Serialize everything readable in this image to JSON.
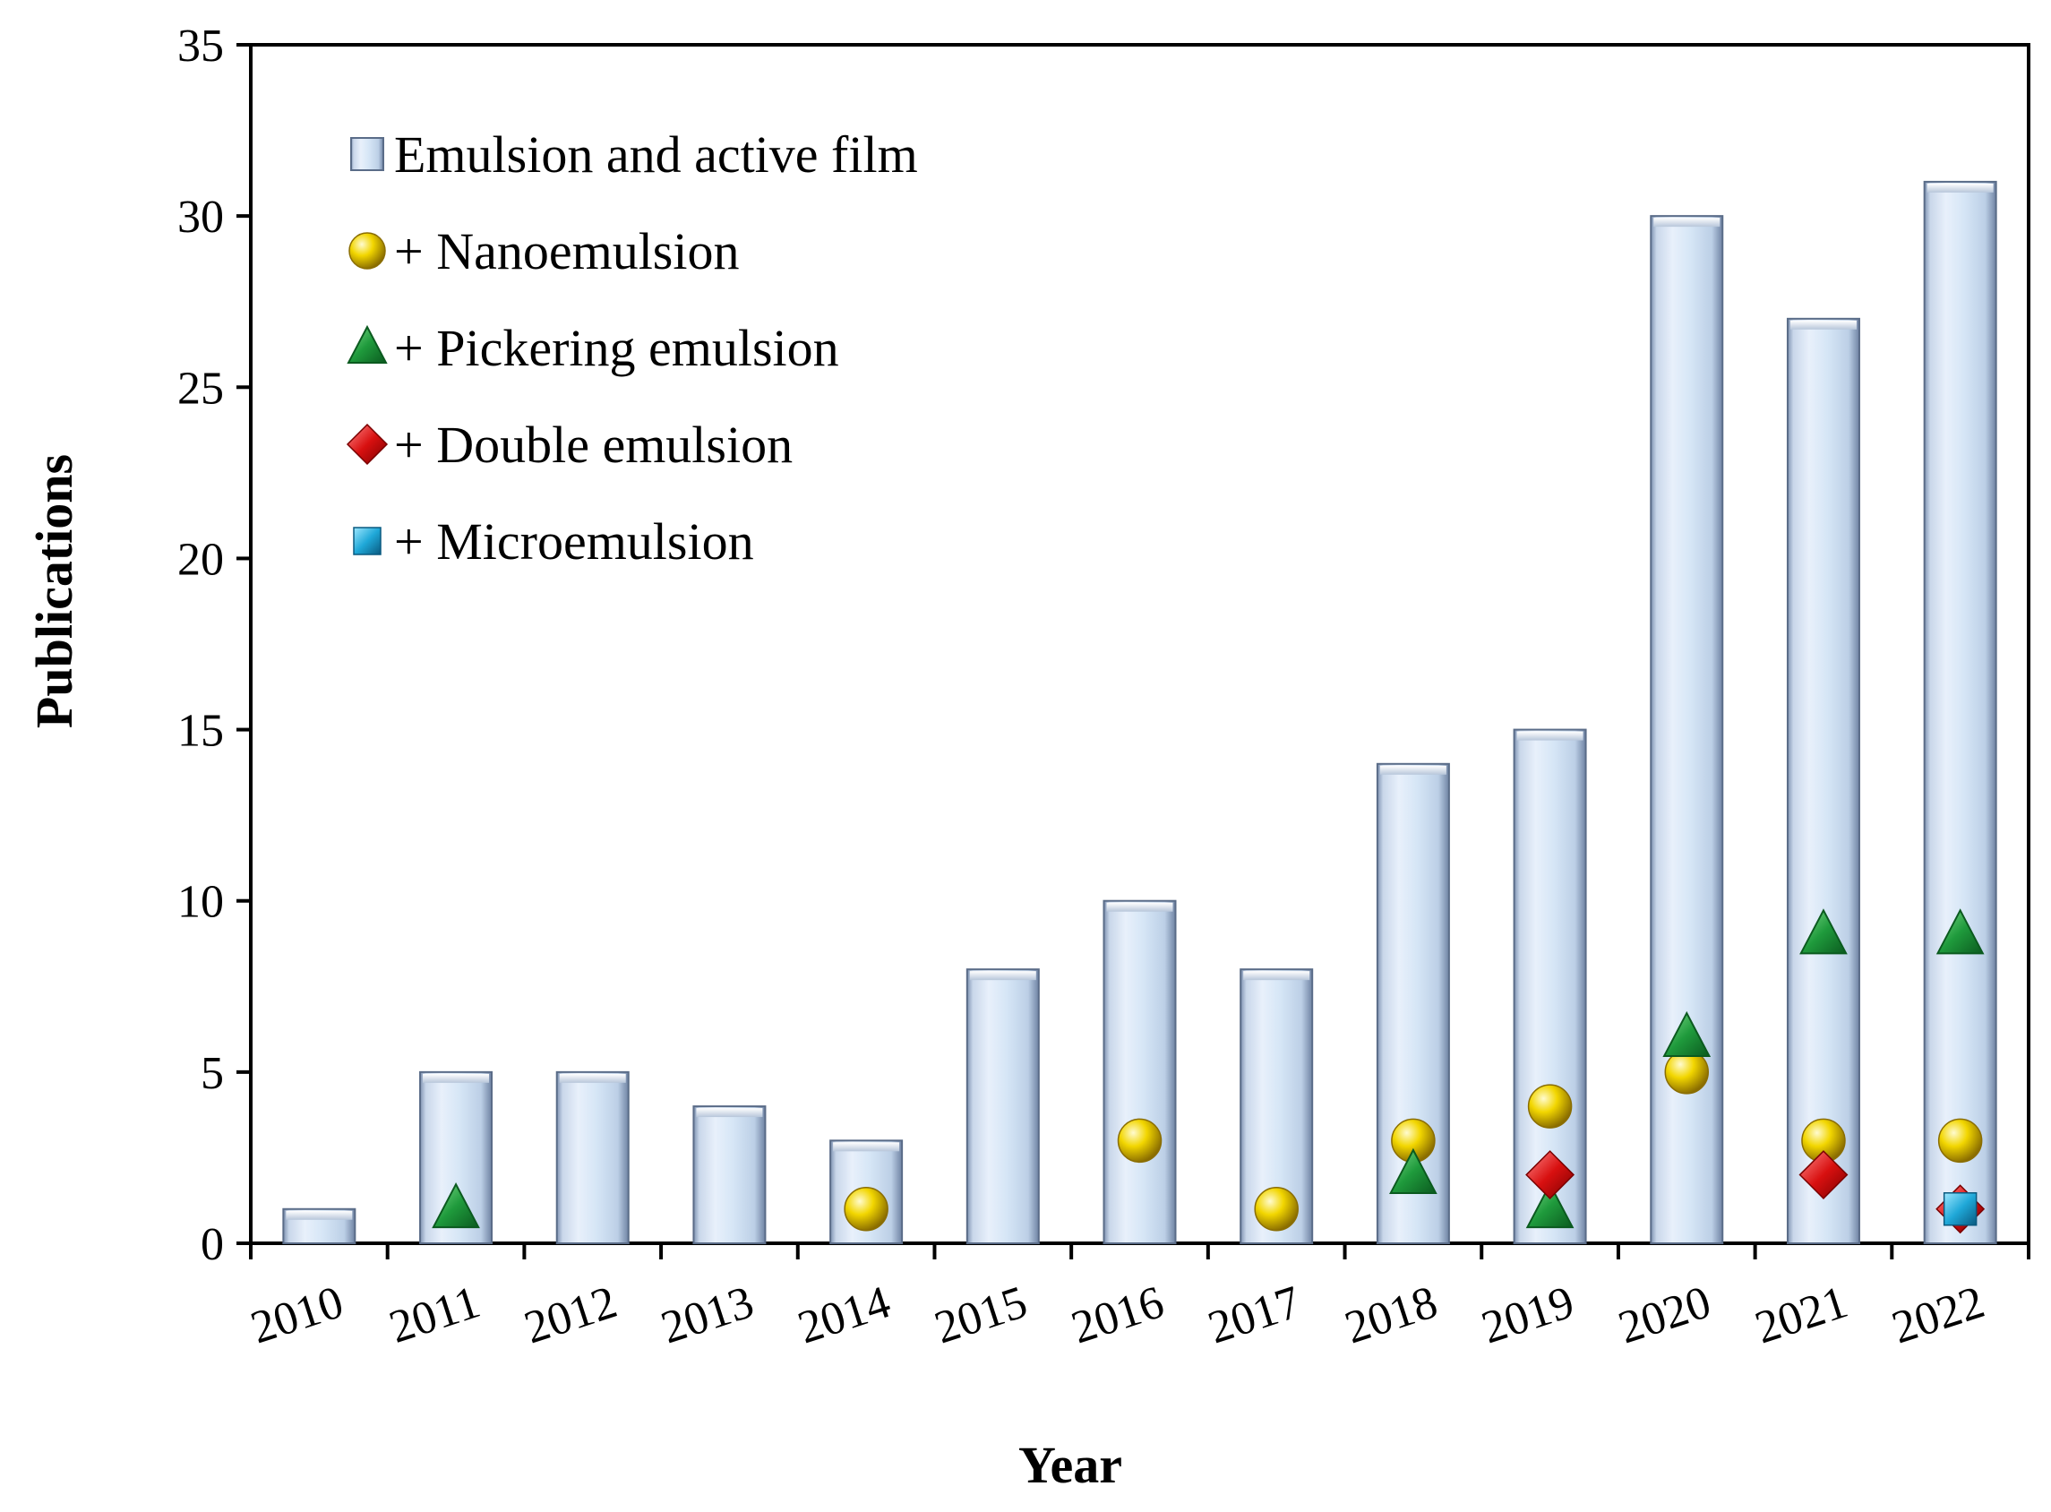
{
  "chart_data": {
    "type": "bar",
    "title": "",
    "xlabel": "Year",
    "ylabel": "Publications",
    "ylim": [
      0,
      35
    ],
    "yticks": [
      0,
      5,
      10,
      15,
      20,
      25,
      30,
      35
    ],
    "grid": false,
    "legend_position": "top-left",
    "categories": [
      "2010",
      "2011",
      "2012",
      "2013",
      "2014",
      "2015",
      "2016",
      "2017",
      "2018",
      "2019",
      "2020",
      "2021",
      "2022"
    ],
    "bar_series": {
      "name": "Emulsion and active film",
      "values": [
        1,
        5,
        5,
        4,
        3,
        8,
        10,
        8,
        14,
        15,
        30,
        27,
        31
      ]
    },
    "marker_series": [
      {
        "name": "+ Nanoemulsion",
        "marker": "circle",
        "color": "#f2d600",
        "values": [
          null,
          null,
          null,
          null,
          1,
          null,
          3,
          1,
          3,
          4,
          5,
          3,
          3
        ]
      },
      {
        "name": "+ Pickering emulsion",
        "marker": "triangle",
        "color": "#1f9a3c",
        "values": [
          null,
          1,
          null,
          null,
          null,
          null,
          null,
          null,
          2,
          1,
          6,
          9,
          9
        ]
      },
      {
        "name": "+ Double emulsion",
        "marker": "diamond",
        "color": "#d81010",
        "values": [
          null,
          null,
          null,
          null,
          null,
          null,
          null,
          null,
          null,
          2,
          null,
          2,
          1
        ]
      },
      {
        "name": "+ Microemulsion",
        "marker": "square",
        "color": "#1fa8d8",
        "values": [
          null,
          null,
          null,
          null,
          null,
          null,
          null,
          null,
          null,
          null,
          null,
          null,
          1
        ]
      }
    ]
  }
}
